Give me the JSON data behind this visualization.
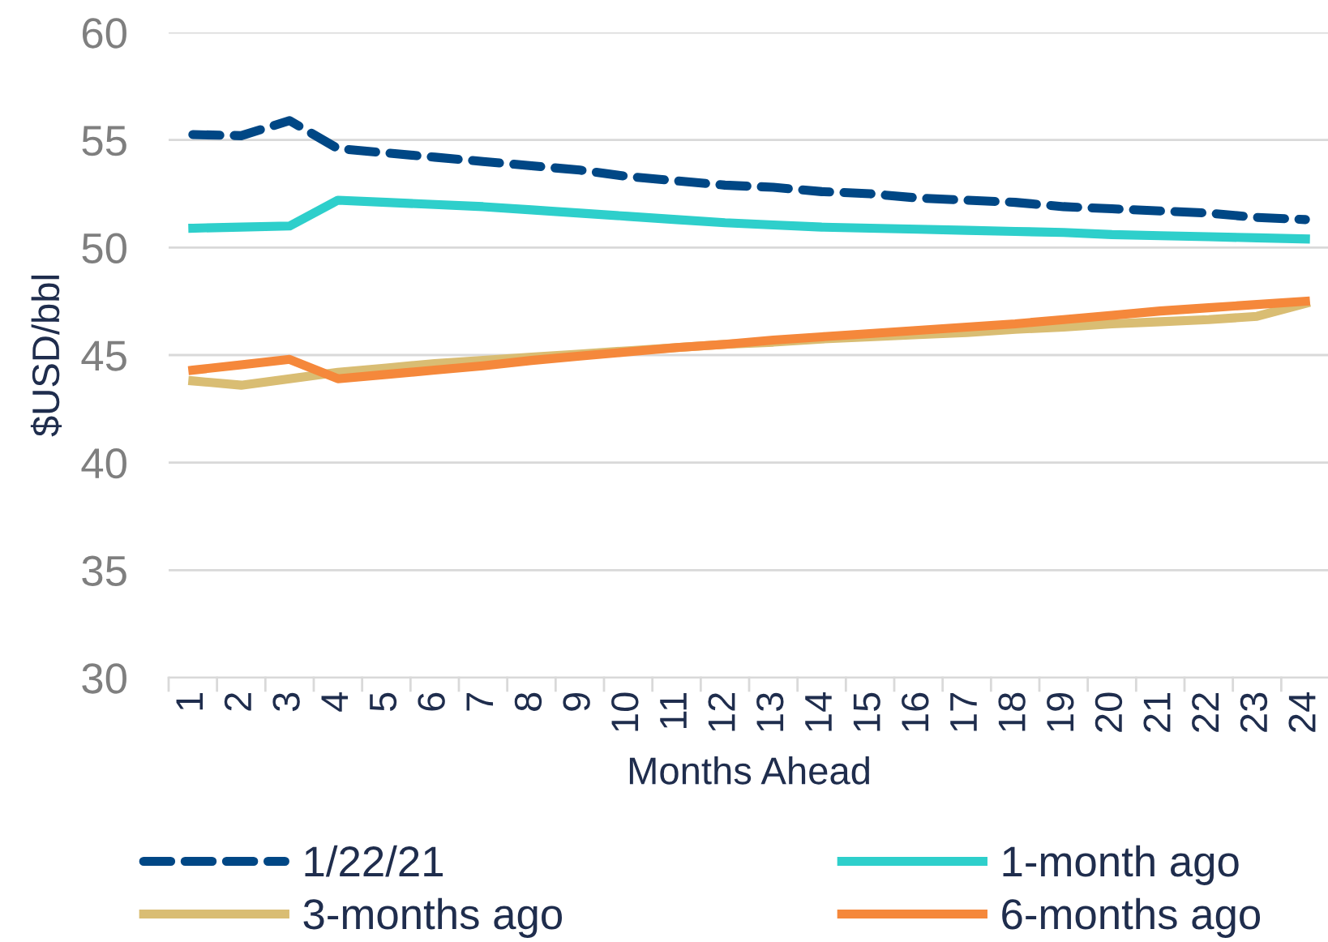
{
  "chart_data": {
    "type": "line",
    "xlabel": "Months Ahead",
    "ylabel": "$USD/bbl",
    "categories": [
      "1",
      "2",
      "3",
      "4",
      "5",
      "6",
      "7",
      "8",
      "9",
      "10",
      "11",
      "12",
      "13",
      "14",
      "15",
      "16",
      "17",
      "18",
      "19",
      "20",
      "21",
      "22",
      "23",
      "24"
    ],
    "ylim": [
      30,
      60
    ],
    "yticks": [
      30,
      35,
      40,
      45,
      50,
      55,
      60
    ],
    "grid": "y",
    "legend": "bottom",
    "marker": "none",
    "series": [
      {
        "name": "1/22/21",
        "color": "#004785",
        "line_style": "dashed",
        "values": [
          55.25,
          55.2,
          55.9,
          54.6,
          54.4,
          54.2,
          54.0,
          53.8,
          53.6,
          53.3,
          53.1,
          52.9,
          52.8,
          52.6,
          52.5,
          52.3,
          52.2,
          52.1,
          51.9,
          51.8,
          51.7,
          51.6,
          51.4,
          51.3
        ]
      },
      {
        "name": "1-month ago",
        "color": "#2ecfcb",
        "line_style": "solid",
        "values": [
          50.9,
          50.95,
          51.0,
          52.2,
          52.1,
          52.0,
          51.9,
          51.75,
          51.6,
          51.45,
          51.3,
          51.15,
          51.05,
          50.95,
          50.9,
          50.85,
          50.8,
          50.75,
          50.7,
          50.6,
          50.55,
          50.5,
          50.45,
          50.4
        ]
      },
      {
        "name": "3-months ago",
        "color": "#d9bd73",
        "line_style": "solid",
        "values": [
          43.8,
          43.6,
          43.9,
          44.2,
          44.4,
          44.6,
          44.75,
          44.9,
          45.05,
          45.2,
          45.35,
          45.5,
          45.6,
          45.75,
          45.85,
          45.95,
          46.05,
          46.2,
          46.3,
          46.45,
          46.55,
          46.65,
          46.8,
          47.4
        ]
      },
      {
        "name": "6-months ago",
        "color": "#f5883b",
        "line_style": "solid",
        "values": [
          44.3,
          44.55,
          44.8,
          43.9,
          44.1,
          44.3,
          44.5,
          44.75,
          44.95,
          45.15,
          45.35,
          45.5,
          45.7,
          45.85,
          46.0,
          46.15,
          46.3,
          46.45,
          46.65,
          46.85,
          47.05,
          47.2,
          47.35,
          47.5
        ]
      }
    ]
  }
}
